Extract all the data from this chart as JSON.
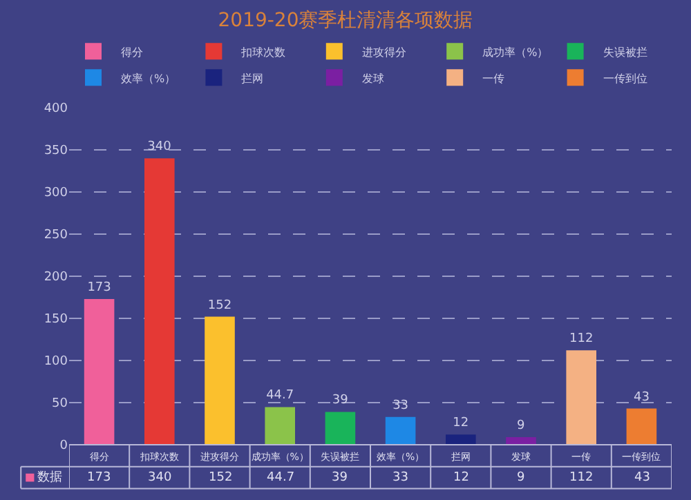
{
  "chart_data": {
    "type": "bar",
    "title": "2019-20赛季杜清清各项数据",
    "categories": [
      "得分",
      "扣球次数",
      "进攻得分",
      "成功率（%）",
      "失误被拦",
      "效率（%）",
      "拦网",
      "发球",
      "一传",
      "一传到位"
    ],
    "series": [
      {
        "name": "得分",
        "color": "#f0609a",
        "values": [
          173,
          null,
          null,
          null,
          null,
          null,
          null,
          null,
          null,
          null
        ],
        "value_labels": [
          "173",
          null,
          null,
          null,
          null,
          null,
          null,
          null,
          null,
          null
        ]
      },
      {
        "name": "扣球次数",
        "color": "#e53935",
        "values": [
          null,
          340,
          null,
          null,
          null,
          null,
          null,
          null,
          null,
          null
        ],
        "value_labels": [
          null,
          "340",
          null,
          null,
          null,
          null,
          null,
          null,
          null,
          null
        ]
      },
      {
        "name": "进攻得分",
        "color": "#fbc02d",
        "values": [
          null,
          null,
          152,
          null,
          null,
          null,
          null,
          null,
          null,
          null
        ],
        "value_labels": [
          null,
          null,
          "152",
          null,
          null,
          null,
          null,
          null,
          null,
          null
        ]
      },
      {
        "name": "成功率（%）",
        "color": "#8bc34a",
        "values": [
          null,
          null,
          null,
          44.7,
          null,
          null,
          null,
          null,
          null,
          null
        ],
        "value_labels": [
          null,
          null,
          null,
          "44.7",
          null,
          null,
          null,
          null,
          null,
          null
        ]
      },
      {
        "name": "失误被拦",
        "color": "#19b45a",
        "values": [
          null,
          null,
          null,
          null,
          39,
          null,
          null,
          null,
          null,
          null
        ],
        "value_labels": [
          null,
          null,
          null,
          null,
          "39",
          null,
          null,
          null,
          null,
          null
        ]
      },
      {
        "name": "效率（%）",
        "color": "#1e88e5",
        "values": [
          null,
          null,
          null,
          null,
          null,
          33,
          null,
          null,
          null,
          null
        ],
        "value_labels": [
          null,
          null,
          null,
          null,
          null,
          "33",
          null,
          null,
          null,
          null
        ]
      },
      {
        "name": "拦网",
        "color": "#1a237e",
        "values": [
          null,
          null,
          null,
          null,
          null,
          null,
          12,
          null,
          null,
          null
        ],
        "value_labels": [
          null,
          null,
          null,
          null,
          null,
          null,
          "12",
          null,
          null,
          null
        ]
      },
      {
        "name": "发球",
        "color": "#7b1fa2",
        "values": [
          null,
          null,
          null,
          null,
          null,
          null,
          null,
          9,
          null,
          null
        ],
        "value_labels": [
          null,
          null,
          null,
          null,
          null,
          null,
          null,
          "9",
          null,
          null
        ]
      },
      {
        "name": "一传",
        "color": "#f4b183",
        "values": [
          null,
          null,
          null,
          null,
          null,
          null,
          null,
          null,
          112,
          null
        ],
        "value_labels": [
          null,
          null,
          null,
          null,
          null,
          null,
          null,
          null,
          "112",
          null
        ]
      },
      {
        "name": "一传到位",
        "color": "#ed7d31",
        "values": [
          null,
          null,
          null,
          null,
          null,
          null,
          null,
          null,
          null,
          43
        ],
        "value_labels": [
          null,
          null,
          null,
          null,
          null,
          null,
          null,
          null,
          null,
          "43"
        ]
      }
    ],
    "annotations": [
      "数据"
    ],
    "ylim": [
      0,
      400
    ],
    "yticks": [
      0,
      50,
      100,
      150,
      200,
      250,
      300,
      350,
      400
    ],
    "grid": "y",
    "legend": "top"
  }
}
